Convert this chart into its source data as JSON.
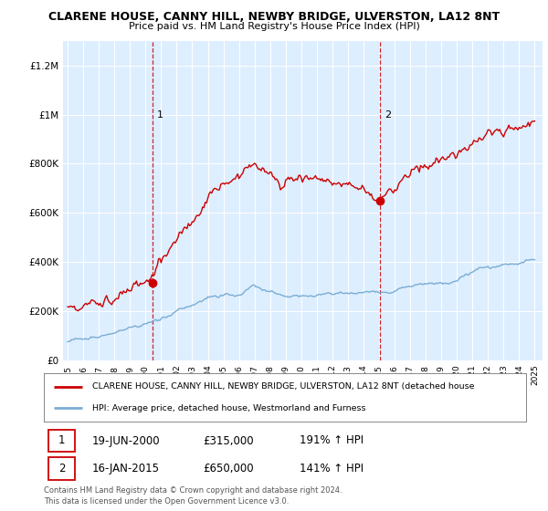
{
  "title": "CLARENE HOUSE, CANNY HILL, NEWBY BRIDGE, ULVERSTON, LA12 8NT",
  "subtitle": "Price paid vs. HM Land Registry's House Price Index (HPI)",
  "ylabel_ticks": [
    "£0",
    "£200K",
    "£400K",
    "£600K",
    "£800K",
    "£1M",
    "£1.2M"
  ],
  "ytick_values": [
    0,
    200000,
    400000,
    600000,
    800000,
    1000000,
    1200000
  ],
  "ylim": [
    0,
    1300000
  ],
  "xlim_start": 1994.7,
  "xlim_end": 2025.5,
  "sale1_x": 2000.46,
  "sale1_y": 315000,
  "sale1_label": "1",
  "sale1_date": "19-JUN-2000",
  "sale1_price": "£315,000",
  "sale1_pct": "191% ↑ HPI",
  "sale2_x": 2015.04,
  "sale2_y": 650000,
  "sale2_label": "2",
  "sale2_date": "16-JAN-2015",
  "sale2_price": "£650,000",
  "sale2_pct": "141% ↑ HPI",
  "red_line_color": "#cc0000",
  "blue_line_color": "#7aadd4",
  "background_color": "#ddeeff",
  "grid_color": "#ffffff",
  "legend_line1": "CLARENE HOUSE, CANNY HILL, NEWBY BRIDGE, ULVERSTON, LA12 8NT (detached house",
  "legend_line2": "HPI: Average price, detached house, Westmorland and Furness",
  "footer": "Contains HM Land Registry data © Crown copyright and database right 2024.\nThis data is licensed under the Open Government Licence v3.0.",
  "xtick_years": [
    1995,
    1996,
    1997,
    1998,
    1999,
    2000,
    2001,
    2002,
    2003,
    2004,
    2005,
    2006,
    2007,
    2008,
    2009,
    2010,
    2011,
    2012,
    2013,
    2014,
    2015,
    2016,
    2017,
    2018,
    2019,
    2020,
    2021,
    2022,
    2023,
    2024,
    2025
  ]
}
